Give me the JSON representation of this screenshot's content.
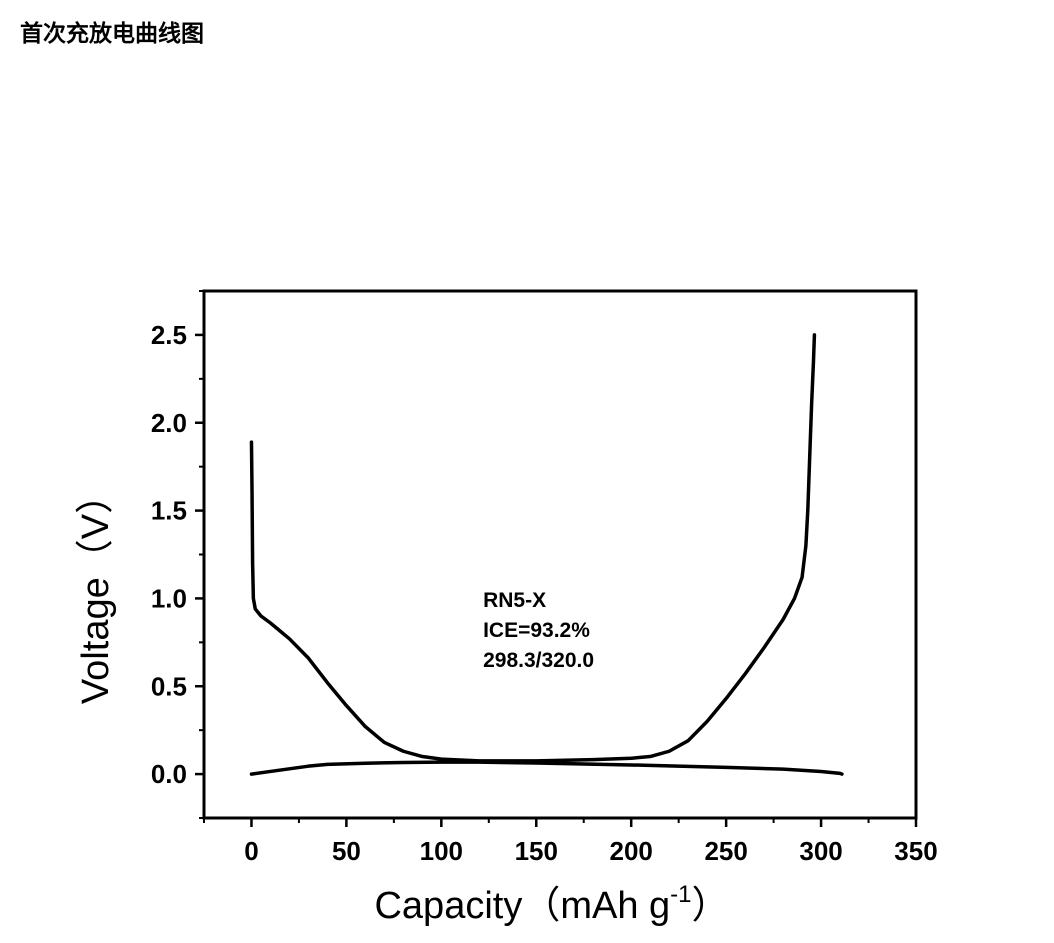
{
  "page": {
    "heading": "首次充放电曲线图"
  },
  "chart_data": {
    "type": "line",
    "title": "",
    "xlabel": "Capacity（mAh g",
    "xlabel_superscript": "-1",
    "xlabel_close": "）",
    "ylabel": "Voltage（V）",
    "xlim": [
      -25,
      350
    ],
    "ylim": [
      -0.25,
      2.75
    ],
    "x_ticks": [
      0,
      50,
      100,
      150,
      200,
      250,
      300,
      350
    ],
    "x_tick_labels": [
      "0",
      "50",
      "100",
      "150",
      "200",
      "250",
      "300",
      "350"
    ],
    "y_ticks": [
      0.0,
      0.5,
      1.0,
      1.5,
      2.0,
      2.5
    ],
    "y_tick_labels": [
      "0.0",
      "0.5",
      "1.0",
      "1.5",
      "2.0",
      "2.5"
    ],
    "grid": false,
    "line_color": "#000000",
    "annotation": [
      "RN5-X",
      "ICE=93.2%",
      "298.3/320.0"
    ],
    "annotation_anchor": {
      "x": 122,
      "y": 0.95
    },
    "series": [
      {
        "points": [
          [
            0,
            1.89
          ],
          [
            0.3,
            1.6
          ],
          [
            0.6,
            1.2
          ],
          [
            1,
            1.0
          ],
          [
            2,
            0.94
          ],
          [
            5,
            0.9
          ],
          [
            10,
            0.86
          ],
          [
            20,
            0.77
          ],
          [
            30,
            0.66
          ],
          [
            40,
            0.52
          ],
          [
            50,
            0.39
          ],
          [
            60,
            0.27
          ],
          [
            70,
            0.18
          ],
          [
            80,
            0.13
          ],
          [
            90,
            0.1
          ],
          [
            100,
            0.085
          ],
          [
            120,
            0.075
          ],
          [
            150,
            0.075
          ],
          [
            180,
            0.082
          ],
          [
            200,
            0.09
          ],
          [
            210,
            0.1
          ],
          [
            220,
            0.13
          ],
          [
            230,
            0.19
          ],
          [
            240,
            0.3
          ],
          [
            250,
            0.43
          ],
          [
            260,
            0.57
          ],
          [
            270,
            0.72
          ],
          [
            280,
            0.88
          ],
          [
            286,
            1.0
          ],
          [
            290,
            1.12
          ],
          [
            292,
            1.3
          ],
          [
            293,
            1.5
          ],
          [
            294,
            1.8
          ],
          [
            295,
            2.1
          ],
          [
            296,
            2.35
          ],
          [
            296.5,
            2.5
          ]
        ]
      },
      {
        "points": [
          [
            0,
            0.0
          ],
          [
            10,
            0.015
          ],
          [
            20,
            0.03
          ],
          [
            30,
            0.045
          ],
          [
            40,
            0.055
          ],
          [
            60,
            0.062
          ],
          [
            80,
            0.066
          ],
          [
            100,
            0.068
          ],
          [
            120,
            0.068
          ],
          [
            150,
            0.063
          ],
          [
            200,
            0.052
          ],
          [
            250,
            0.038
          ],
          [
            280,
            0.028
          ],
          [
            300,
            0.015
          ],
          [
            310,
            0.004
          ],
          [
            311,
            0.0
          ]
        ]
      }
    ]
  }
}
